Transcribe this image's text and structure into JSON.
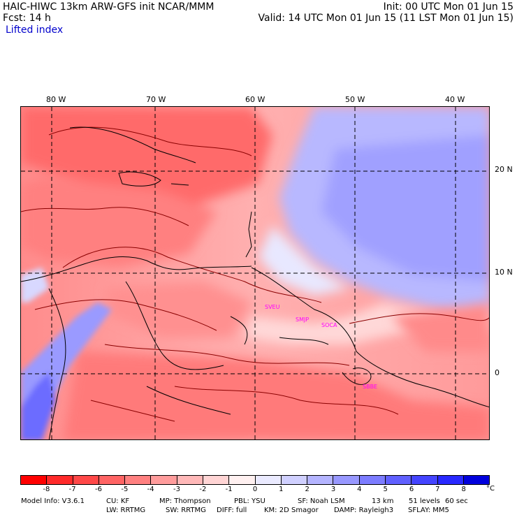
{
  "header": {
    "line1_left": "HAIC-HIWC 13km ARW-GFS init   NCAR/MMM",
    "line1_right": "Init: 00 UTC Mon 01 Jun 15",
    "line2_left": "Fcst:    14 h",
    "line2_right": "Valid: 14 UTC Mon 01 Jun 15 (11 LST Mon 01 Jun 15)",
    "field": "Lifted index"
  },
  "map": {
    "lon_labels": [
      "80 W",
      "70 W",
      "60 W",
      "50 W",
      "40 W"
    ],
    "lat_labels": [
      "20 N",
      "10 N",
      "0"
    ],
    "stations": [
      "SVEU",
      "SMJP",
      "SOCA",
      "SBBE"
    ],
    "colors": {
      "negative_max": "#ff0000",
      "positive_max": "#0000dd",
      "contour": "#8a0000",
      "coast": "#000000"
    }
  },
  "colorbar": {
    "unit": "°C",
    "ticks": [
      "-8",
      "-7",
      "-6",
      "-5",
      "-4",
      "-3",
      "-2",
      "-1",
      "0",
      "1",
      "2",
      "3",
      "4",
      "5",
      "6",
      "7",
      "8"
    ],
    "colors": [
      "#ff0000",
      "#ff2a2a",
      "#ff4848",
      "#ff6464",
      "#ff8080",
      "#ff9c9c",
      "#ffb8b8",
      "#ffd4d4",
      "#fff0f0",
      "#eaeaff",
      "#d0d0ff",
      "#b4b4ff",
      "#9898ff",
      "#7c7cff",
      "#6060ff",
      "#4444ff",
      "#2828ff",
      "#0000dd"
    ]
  },
  "footer": {
    "line1": [
      "Model Info: V3.6.1",
      "CU: KF",
      "MP: Thompson",
      "PBL: YSU",
      "SF: Noah LSM",
      "13 km",
      "51 levels",
      "60 sec"
    ],
    "line2": [
      "LW: RRTMG",
      "SW: RRTMG",
      "DIFF: full",
      "KM: 2D Smagor",
      "DAMP: Rayleigh3",
      "SFLAY: MM5"
    ]
  }
}
